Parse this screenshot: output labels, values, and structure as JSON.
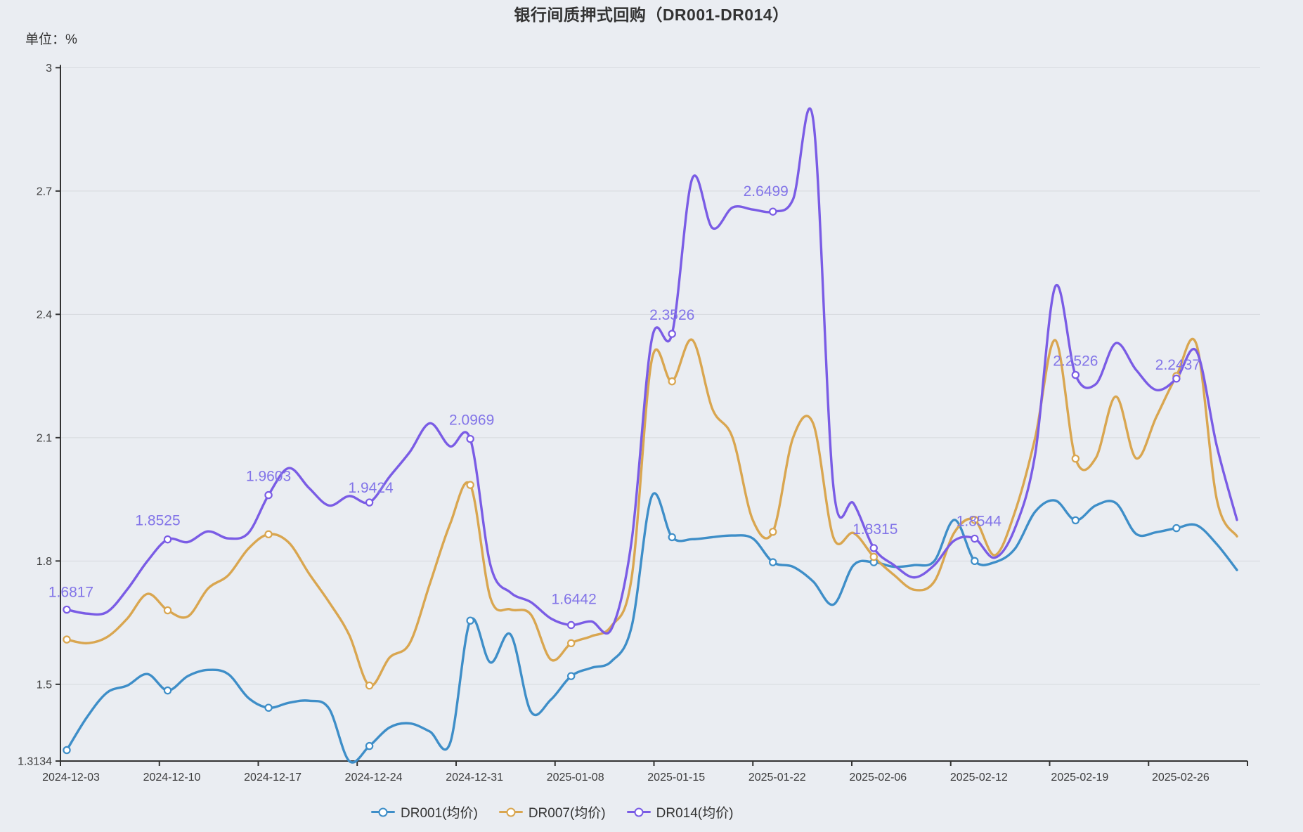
{
  "title": "银行间质押式回购（DR001-DR014）",
  "unit_label": "单位：%",
  "colors": {
    "background": "#eaedf2",
    "grid_line": "#d6d8dd",
    "axis_line": "#333333",
    "axis_text": "#3c3c3c",
    "point_label": "#8274e8",
    "dr001": "#3e8ec8",
    "dr007": "#d9a650",
    "dr014": "#7a5ce5"
  },
  "legend": {
    "items": [
      {
        "label": "DR001(均价)",
        "color": "#3e8ec8"
      },
      {
        "label": "DR007(均价)",
        "color": "#d9a650"
      },
      {
        "label": "DR014(均价)",
        "color": "#7a5ce5"
      }
    ]
  },
  "chart_data": {
    "type": "line",
    "smooth": true,
    "grid": true,
    "legend_position": "bottom",
    "ylim": [
      1.3134,
      3
    ],
    "y_ticks": [
      "3",
      "2.7",
      "2.4",
      "2.1",
      "1.8",
      "1.5",
      "1.3134"
    ],
    "y_tick_values": [
      3,
      2.7,
      2.4,
      2.1,
      1.8,
      1.5,
      1.3134
    ],
    "x_tick_labels": [
      "2024-12-03",
      "2024-12-10",
      "2024-12-17",
      "2024-12-24",
      "2024-12-31",
      "2025-01-08",
      "2025-01-15",
      "2025-01-22",
      "2025-02-06",
      "2025-02-12",
      "2025-02-19",
      "2025-02-26"
    ],
    "x": [
      "2024-12-03",
      "2024-12-04",
      "2024-12-05",
      "2024-12-06",
      "2024-12-09",
      "2024-12-10",
      "2024-12-11",
      "2024-12-12",
      "2024-12-13",
      "2024-12-16",
      "2024-12-17",
      "2024-12-18",
      "2024-12-19",
      "2024-12-20",
      "2024-12-23",
      "2024-12-24",
      "2024-12-25",
      "2024-12-26",
      "2024-12-27",
      "2024-12-30",
      "2024-12-31",
      "2025-01-02",
      "2025-01-03",
      "2025-01-06",
      "2025-01-07",
      "2025-01-08",
      "2025-01-09",
      "2025-01-10",
      "2025-01-13",
      "2025-01-14",
      "2025-01-15",
      "2025-01-16",
      "2025-01-17",
      "2025-01-20",
      "2025-01-21",
      "2025-01-22",
      "2025-01-23",
      "2025-01-24",
      "2025-01-27",
      "2025-02-05",
      "2025-02-06",
      "2025-02-07",
      "2025-02-08",
      "2025-02-10",
      "2025-02-11",
      "2025-02-12",
      "2025-02-13",
      "2025-02-14",
      "2025-02-17",
      "2025-02-18",
      "2025-02-19",
      "2025-02-20",
      "2025-02-21",
      "2025-02-24",
      "2025-02-25",
      "2025-02-26",
      "2025-02-27",
      "2025-02-28",
      "2025-03-03"
    ],
    "series": [
      {
        "name": "DR001(均价)",
        "color": "#3e8ec8",
        "values": [
          1.34,
          1.42,
          1.48,
          1.497,
          1.525,
          1.485,
          1.52,
          1.535,
          1.525,
          1.467,
          1.443,
          1.455,
          1.46,
          1.441,
          1.3134,
          1.35,
          1.395,
          1.405,
          1.385,
          1.357,
          1.655,
          1.553,
          1.621,
          1.434,
          1.463,
          1.52,
          1.54,
          1.556,
          1.641,
          1.958,
          1.858,
          1.853,
          1.858,
          1.862,
          1.855,
          1.797,
          1.786,
          1.75,
          1.694,
          1.79,
          1.797,
          1.786,
          1.79,
          1.8,
          1.9,
          1.8,
          1.797,
          1.83,
          1.92,
          1.947,
          1.899,
          1.935,
          1.941,
          1.866,
          1.87,
          1.88,
          1.887,
          1.841,
          1.778
        ]
      },
      {
        "name": "DR007(均价)",
        "color": "#d9a650",
        "values": [
          1.609,
          1.6,
          1.615,
          1.66,
          1.72,
          1.68,
          1.665,
          1.733,
          1.765,
          1.83,
          1.865,
          1.845,
          1.77,
          1.7,
          1.62,
          1.497,
          1.565,
          1.6,
          1.745,
          1.89,
          1.985,
          1.71,
          1.682,
          1.67,
          1.56,
          1.6,
          1.617,
          1.642,
          1.76,
          2.29,
          2.237,
          2.338,
          2.17,
          2.1,
          1.9,
          1.871,
          2.1,
          2.134,
          1.857,
          1.868,
          1.81,
          1.766,
          1.73,
          1.75,
          1.87,
          1.9,
          1.814,
          1.92,
          2.1,
          2.337,
          2.049,
          2.05,
          2.2,
          2.05,
          2.15,
          2.25,
          2.326,
          1.95,
          1.86
        ]
      },
      {
        "name": "DR014(均价)",
        "color": "#7a5ce5",
        "values": [
          1.6817,
          1.672,
          1.676,
          1.731,
          1.8,
          1.8525,
          1.846,
          1.872,
          1.855,
          1.868,
          1.9603,
          2.026,
          1.978,
          1.935,
          1.958,
          1.9424,
          2.005,
          2.065,
          2.135,
          2.079,
          2.0969,
          1.79,
          1.723,
          1.7,
          1.66,
          1.6442,
          1.653,
          1.635,
          1.85,
          2.34,
          2.3526,
          2.73,
          2.61,
          2.66,
          2.655,
          2.6499,
          2.68,
          2.872,
          1.98,
          1.94,
          1.8315,
          1.79,
          1.76,
          1.79,
          1.85,
          1.8544,
          1.808,
          1.88,
          2.06,
          2.468,
          2.2526,
          2.23,
          2.33,
          2.265,
          2.216,
          2.2437,
          2.31,
          2.08,
          1.9
        ]
      }
    ],
    "marker_every": 5,
    "point_labels": {
      "series": "DR014(均价)",
      "every": 5,
      "values": [
        "1.6817",
        "1.8525",
        "1.9603",
        "1.9424",
        "2.0969",
        "1.6442",
        "2.3526",
        "2.6499",
        "1.8315",
        "1.8544",
        "2.2526",
        "2.2437"
      ]
    }
  }
}
